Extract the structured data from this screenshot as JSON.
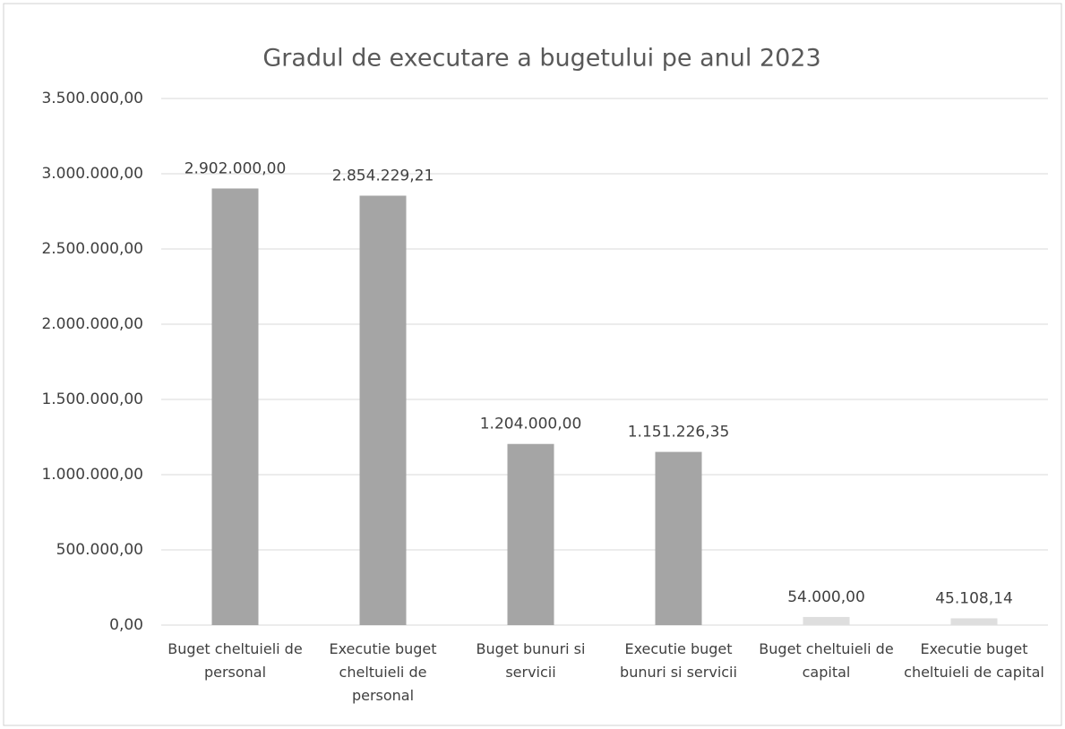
{
  "chart_data": {
    "type": "bar",
    "title": "Gradul de executare a bugetului pe anul 2023",
    "categories": [
      "Buget cheltuieli de personal",
      "Executie buget cheltuieli de personal",
      "Buget bunuri si servicii",
      "Executie buget bunuri si servicii",
      "Buget cheltuieli de capital",
      "Executie buget cheltuieli de capital"
    ],
    "values": [
      2902000,
      2854229.21,
      1204000,
      1151226.35,
      54000,
      45108.14
    ],
    "value_labels": [
      "2.902.000,00",
      "2.854.229,21",
      "1.204.000,00",
      "1.151.226,35",
      "54.000,00",
      "45.108,14"
    ],
    "colors": [
      "#a5a5a5",
      "#a5a5a5",
      "#a5a5a5",
      "#a5a5a5",
      "#dedede",
      "#dedede"
    ],
    "ylim": [
      0,
      3500000
    ],
    "yticks": [
      {
        "value": 0,
        "label": "0,00"
      },
      {
        "value": 500000,
        "label": "500.000,00"
      },
      {
        "value": 1000000,
        "label": "1.000.000,00"
      },
      {
        "value": 1500000,
        "label": "1.500.000,00"
      },
      {
        "value": 2000000,
        "label": "2.000.000,00"
      },
      {
        "value": 2500000,
        "label": "2.500.000,00"
      },
      {
        "value": 3000000,
        "label": "3.000.000,00"
      },
      {
        "value": 3500000,
        "label": "3.500.000,00"
      }
    ],
    "grid": true
  }
}
